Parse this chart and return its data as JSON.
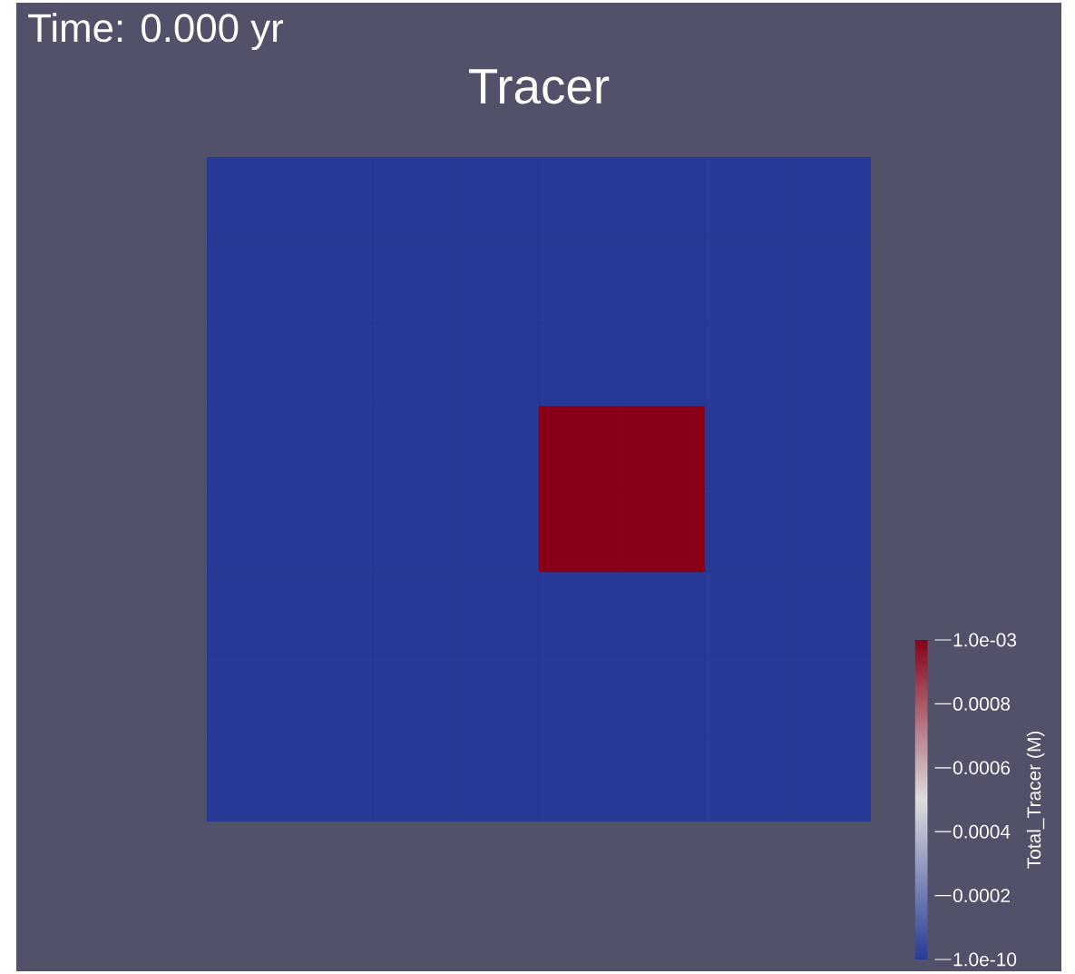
{
  "chart_data": {
    "type": "heatmap",
    "title": "Tracer",
    "annotations": [
      "Time: 0.000 yr"
    ],
    "categories": [
      null,
      null,
      null,
      null,
      null,
      null,
      null,
      null
    ],
    "y_categories": [
      null,
      null,
      null,
      null,
      null,
      null,
      null,
      null
    ],
    "cells": [
      [
        1e-10,
        1e-10,
        1e-10,
        1e-10,
        1e-10,
        1e-10,
        1e-10,
        1e-10
      ],
      [
        1e-10,
        1e-10,
        1e-10,
        1e-10,
        1e-10,
        1e-10,
        1e-10,
        1e-10
      ],
      [
        1e-10,
        1e-10,
        1e-10,
        1e-10,
        1e-10,
        1e-10,
        1e-10,
        1e-10
      ],
      [
        1e-10,
        1e-10,
        1e-10,
        1e-10,
        0.001,
        0.001,
        1e-10,
        1e-10
      ],
      [
        1e-10,
        1e-10,
        1e-10,
        1e-10,
        0.001,
        0.001,
        1e-10,
        1e-10
      ],
      [
        1e-10,
        1e-10,
        1e-10,
        1e-10,
        1e-10,
        1e-10,
        1e-10,
        1e-10
      ],
      [
        1e-10,
        1e-10,
        1e-10,
        1e-10,
        1e-10,
        1e-10,
        1e-10,
        1e-10
      ],
      [
        1e-10,
        1e-10,
        1e-10,
        1e-10,
        1e-10,
        1e-10,
        1e-10,
        1e-10
      ]
    ],
    "clim": [
      1e-10,
      0.001
    ],
    "cticks": [
      {
        "value": 0.001,
        "label": "1.0e-03"
      },
      0.0008,
      0.0006,
      0.0004,
      0.0002,
      {
        "value": 1e-10,
        "label": "1.0e-10"
      }
    ],
    "clabel": "Total_Tracer (M)"
  }
}
